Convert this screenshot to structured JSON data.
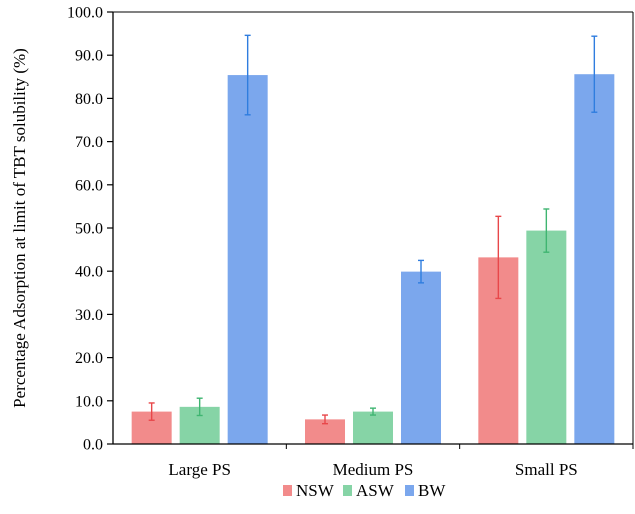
{
  "chart_data": {
    "type": "bar",
    "title": "",
    "xlabel": "",
    "ylabel": "Percentage Adsorption at limit of TBT solubility (%)",
    "ylim": [
      0,
      100
    ],
    "yticks": [
      "0.0",
      "10.0",
      "20.0",
      "30.0",
      "40.0",
      "50.0",
      "60.0",
      "70.0",
      "80.0",
      "90.0",
      "100.0"
    ],
    "categories": [
      "Large PS",
      "Medium PS",
      "Small PS"
    ],
    "series": [
      {
        "name": "NSW",
        "color": "#f28b8b",
        "error_color": "#e8474a",
        "values": [
          7.5,
          5.7,
          43.2
        ],
        "errors": [
          2.0,
          1.0,
          9.5
        ]
      },
      {
        "name": "ASW",
        "color": "#86d4a6",
        "error_color": "#3fb571",
        "values": [
          8.6,
          7.5,
          49.4
        ],
        "errors": [
          2.0,
          0.8,
          5.0
        ]
      },
      {
        "name": "BW",
        "color": "#7ba7ed",
        "error_color": "#2f7ddf",
        "values": [
          85.4,
          39.9,
          85.6
        ],
        "errors": [
          9.2,
          2.6,
          8.8
        ]
      }
    ],
    "grid": false,
    "legend": "bottom"
  }
}
